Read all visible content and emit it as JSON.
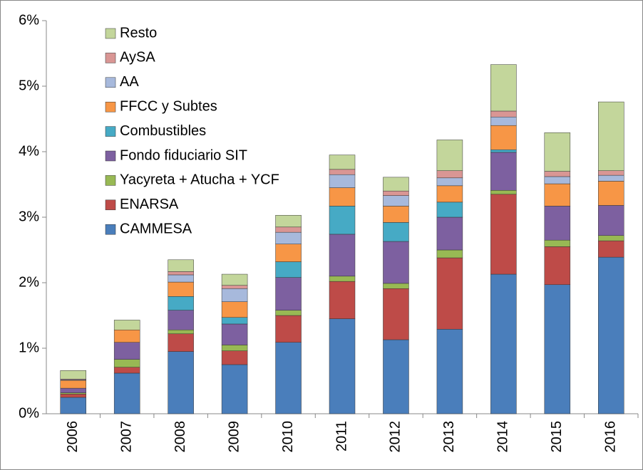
{
  "chart_data": {
    "type": "stacked_bar",
    "categories": [
      "2006",
      "2007",
      "2008",
      "2009",
      "2010",
      "2011",
      "2012",
      "2013",
      "2014",
      "2015",
      "2016"
    ],
    "series": [
      {
        "name": "CAMMESA",
        "color": "#4a7ebb",
        "values": [
          0.25,
          0.62,
          0.95,
          0.75,
          1.09,
          1.45,
          1.13,
          1.29,
          2.13,
          1.97,
          2.39
        ]
      },
      {
        "name": "ENARSA",
        "color": "#be4b48",
        "values": [
          0.05,
          0.09,
          0.27,
          0.21,
          0.41,
          0.57,
          0.78,
          1.09,
          1.22,
          0.58,
          0.25
        ]
      },
      {
        "name": "Yacyreta + Atucha + YCF",
        "color": "#98b954",
        "values": [
          0.02,
          0.12,
          0.06,
          0.09,
          0.08,
          0.08,
          0.08,
          0.12,
          0.06,
          0.1,
          0.08
        ]
      },
      {
        "name": "Fondo fiduciario SIT",
        "color": "#7d60a0",
        "values": [
          0.07,
          0.26,
          0.3,
          0.32,
          0.5,
          0.64,
          0.64,
          0.5,
          0.58,
          0.52,
          0.46
        ]
      },
      {
        "name": "Combustibles",
        "color": "#46aac5",
        "values": [
          0,
          0,
          0.21,
          0.1,
          0.24,
          0.43,
          0.29,
          0.23,
          0.04,
          0,
          0
        ]
      },
      {
        "name": "FFCC y Subtes",
        "color": "#f79646",
        "values": [
          0.12,
          0.19,
          0.22,
          0.24,
          0.27,
          0.28,
          0.25,
          0.25,
          0.37,
          0.34,
          0.37
        ]
      },
      {
        "name": "AA",
        "color": "#a7b9dc",
        "values": [
          0.01,
          0,
          0.11,
          0.2,
          0.18,
          0.2,
          0.16,
          0.12,
          0.13,
          0.11,
          0.09
        ]
      },
      {
        "name": "AySA",
        "color": "#d99694",
        "values": [
          0.01,
          0,
          0.05,
          0.05,
          0.08,
          0.08,
          0.07,
          0.11,
          0.09,
          0.08,
          0.07
        ]
      },
      {
        "name": "Resto",
        "color": "#c3d69b",
        "values": [
          0.13,
          0.15,
          0.18,
          0.17,
          0.18,
          0.22,
          0.21,
          0.47,
          0.71,
          0.59,
          1.05
        ]
      }
    ],
    "ylim": [
      0,
      6
    ],
    "yticks": [
      {
        "value": 0,
        "label": "0%"
      },
      {
        "value": 1,
        "label": "1%"
      },
      {
        "value": 2,
        "label": "2%"
      },
      {
        "value": 3,
        "label": "3%"
      },
      {
        "value": 4,
        "label": "4%"
      },
      {
        "value": 5,
        "label": "5%"
      },
      {
        "value": 6,
        "label": "6%"
      }
    ],
    "legend": "upper left",
    "grid": false
  }
}
